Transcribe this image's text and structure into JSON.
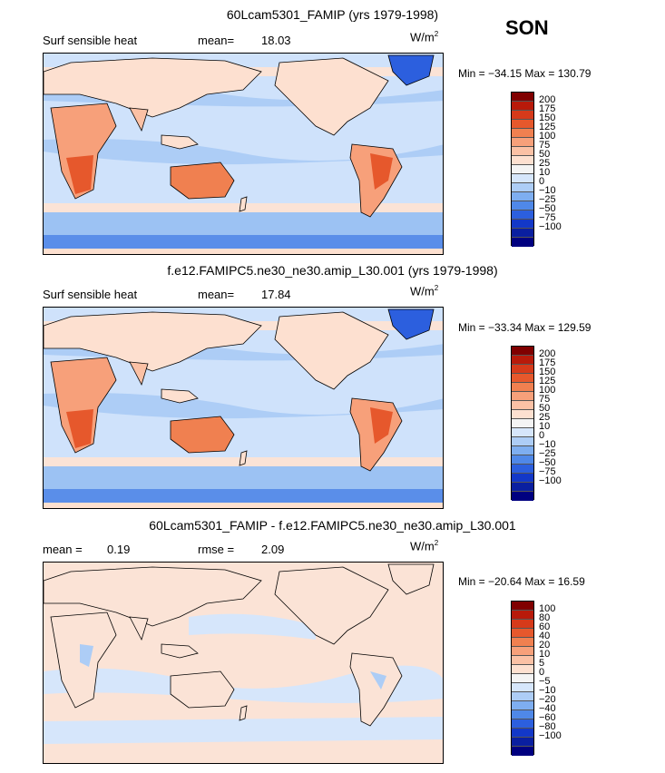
{
  "season": "SON",
  "panels": [
    {
      "title": "60Lcam5301_FAMIP (yrs 1979-1998)",
      "left_label": "Surf sensible heat",
      "stat_label": "mean=",
      "stat_value": "18.03",
      "units": "W/m",
      "units_exp": "2",
      "minmax": "Min = −34.15 Max = 130.79",
      "colorbar_labels": [
        "200",
        "175",
        "150",
        "125",
        "100",
        "75",
        "50",
        "25",
        "10",
        "0",
        "−10",
        "−25",
        "−50",
        "−75",
        "−100"
      ],
      "ocean_color": "#cfe2fb"
    },
    {
      "title": "f.e12.FAMIPC5.ne30_ne30.amip_L30.001 (yrs 1979-1998)",
      "left_label": "Surf sensible heat",
      "stat_label": "mean=",
      "stat_value": "17.84",
      "units": "W/m",
      "units_exp": "2",
      "minmax": "Min = −33.34 Max = 129.59",
      "colorbar_labels": [
        "200",
        "175",
        "150",
        "125",
        "100",
        "75",
        "50",
        "25",
        "10",
        "0",
        "−10",
        "−25",
        "−50",
        "−75",
        "−100"
      ],
      "ocean_color": "#cfe2fb"
    },
    {
      "title": "60Lcam5301_FAMIP - f.e12.FAMIPC5.ne30_ne30.amip_L30.001",
      "left_label": "mean =",
      "left_value": "0.19",
      "stat_label": "rmse =",
      "stat_value": "2.09",
      "units": "W/m",
      "units_exp": "2",
      "minmax": "Min = −20.64 Max = 16.59",
      "colorbar_labels": [
        "100",
        "80",
        "60",
        "40",
        "20",
        "10",
        "5",
        "0",
        "−5",
        "−10",
        "−20",
        "−40",
        "−60",
        "−80",
        "−100"
      ],
      "ocean_color": "#fbe3d6"
    }
  ],
  "colorbar_colors": [
    "#800000",
    "#b81a0a",
    "#d63a1a",
    "#e6582c",
    "#f08050",
    "#f7a07a",
    "#fbc1a5",
    "#fde0d0",
    "#f4f4f4",
    "#d6e6fb",
    "#adcdf6",
    "#7eaef0",
    "#4f88e8",
    "#2c5fde",
    "#1338c8",
    "#0a1fa0",
    "#000080"
  ]
}
